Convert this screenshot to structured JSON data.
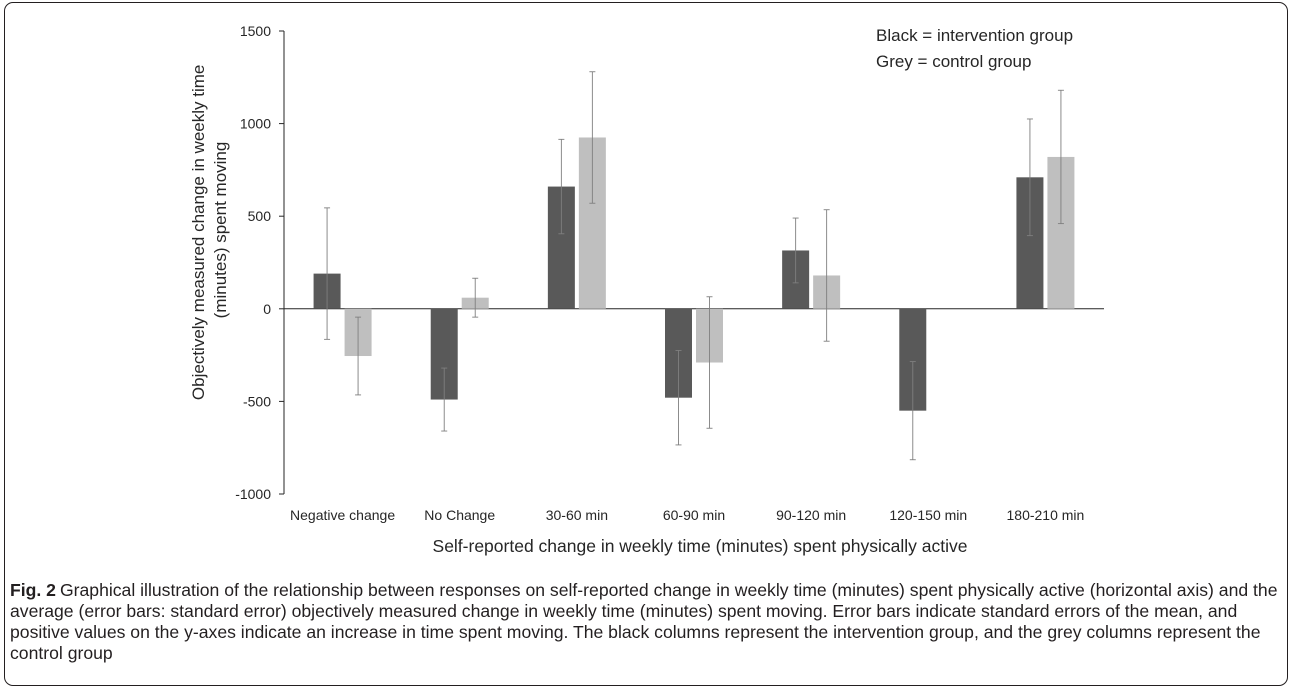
{
  "chart_data": {
    "type": "bar",
    "categories": [
      "Negative change",
      "No Change",
      "30-60 min",
      "60-90 min",
      "90-120 min",
      "120-150 min",
      "180-210 min"
    ],
    "series": [
      {
        "values": [
          190,
          -490,
          660,
          -480,
          315,
          -550,
          710
        ],
        "errors": [
          355,
          170,
          255,
          255,
          175,
          265,
          315
        ],
        "color": "#595959"
      },
      {
        "values": [
          -255,
          60,
          925,
          -290,
          180,
          null,
          820
        ],
        "errors": [
          210,
          105,
          355,
          355,
          355,
          null,
          360
        ],
        "color": "#bfbfbf"
      }
    ],
    "ylim": [
      -1000,
      1500
    ],
    "yticks": [
      "1500",
      "1000",
      "500",
      "0",
      "-500",
      "-1000"
    ],
    "ylabel": "Objectively measured change in weekly time (minutes) spent moving",
    "ylabel_lines": [
      "Objectively measured change in weekly time",
      "(minutes) spent moving"
    ],
    "xlabel": "Self-reported change in weekly time (minutes) spent physically active",
    "annotations": [
      "Black = intervention group",
      "Grey = control group"
    ],
    "grid": false,
    "legend": "none"
  },
  "caption": {
    "label": "Fig. 2",
    "text": "Graphical illustration of the relationship between responses on self-reported change in weekly time (minutes) spent physically active (horizontal axis) and the average (error bars: standard error) objectively measured change in weekly time (minutes) spent moving. Error bars indicate standard errors of the mean, and positive values on the y-axes indicate an increase in time spent moving. The black columns represent the intervention group, and the grey columns represent the control group"
  }
}
